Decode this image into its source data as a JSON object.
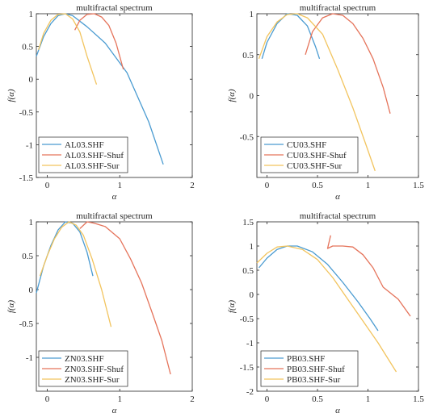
{
  "chart_data": [
    {
      "type": "line",
      "title": "multifractal spectrum",
      "xlabel": "α",
      "ylabel": "f(α)",
      "xlim": [
        -0.15,
        2
      ],
      "ylim": [
        -1.5,
        1
      ],
      "xticks": [
        0,
        1,
        2
      ],
      "yticks": [
        -1.5,
        -1,
        -0.5,
        0,
        0.5,
        1
      ],
      "grid": false,
      "legend_position": "bottom-left",
      "series": [
        {
          "name": "AL03.SHF",
          "color": "#4A9BD1",
          "x": [
            -0.15,
            -0.05,
            0.05,
            0.15,
            0.25,
            0.35,
            0.55,
            0.8,
            1.1,
            1.4,
            1.6
          ],
          "y": [
            0.35,
            0.65,
            0.85,
            0.97,
            1.0,
            0.97,
            0.8,
            0.55,
            0.1,
            -0.65,
            -1.3
          ]
        },
        {
          "name": "AL03.SHF-Shuf",
          "color": "#E5735A",
          "x": [
            0.38,
            0.45,
            0.55,
            0.65,
            0.75,
            0.85,
            0.95,
            1.05
          ],
          "y": [
            0.75,
            0.9,
            0.99,
            1.0,
            0.95,
            0.82,
            0.55,
            0.15
          ]
        },
        {
          "name": "AL03.SHF-Sur",
          "color": "#F2C45E",
          "x": [
            -0.12,
            -0.05,
            0.05,
            0.15,
            0.25,
            0.35,
            0.45,
            0.55,
            0.68
          ],
          "y": [
            0.45,
            0.7,
            0.9,
            0.99,
            1.0,
            0.92,
            0.72,
            0.35,
            -0.08
          ]
        }
      ]
    },
    {
      "type": "line",
      "title": "multifractal spectrum",
      "xlabel": "α",
      "ylabel": "f(α)",
      "xlim": [
        -0.1,
        1.5
      ],
      "ylim": [
        -1,
        1
      ],
      "xticks": [
        0,
        0.5,
        1,
        1.5
      ],
      "yticks": [
        -0.5,
        0,
        0.5,
        1
      ],
      "grid": false,
      "legend_position": "bottom-left",
      "series": [
        {
          "name": "CU03.SHF",
          "color": "#4A9BD1",
          "x": [
            -0.05,
            0.0,
            0.1,
            0.2,
            0.3,
            0.4,
            0.48,
            0.52
          ],
          "y": [
            0.45,
            0.65,
            0.88,
            1.0,
            0.98,
            0.85,
            0.6,
            0.45
          ]
        },
        {
          "name": "CU03.SHF-Shuf",
          "color": "#E5735A",
          "x": [
            0.38,
            0.45,
            0.55,
            0.65,
            0.75,
            0.85,
            0.95,
            1.05,
            1.15,
            1.22
          ],
          "y": [
            0.5,
            0.78,
            0.95,
            1.0,
            0.98,
            0.88,
            0.7,
            0.45,
            0.1,
            -0.22
          ]
        },
        {
          "name": "CU03.SHF-Sur",
          "color": "#F2C45E",
          "x": [
            -0.08,
            0.0,
            0.1,
            0.2,
            0.3,
            0.4,
            0.55,
            0.7,
            0.85,
            0.98,
            1.07
          ],
          "y": [
            0.45,
            0.72,
            0.9,
            0.99,
            1.0,
            0.95,
            0.75,
            0.32,
            -0.15,
            -0.6,
            -0.92
          ]
        }
      ]
    },
    {
      "type": "line",
      "title": "multifractal spectrum",
      "xlabel": "α",
      "ylabel": "f(α)",
      "xlim": [
        -0.15,
        2
      ],
      "ylim": [
        -1.5,
        1
      ],
      "xticks": [
        0,
        1,
        2
      ],
      "yticks": [
        -1,
        -0.5,
        0,
        0.5,
        1
      ],
      "grid": false,
      "legend_position": "bottom-left",
      "series": [
        {
          "name": "ZN03.SHF",
          "color": "#4A9BD1",
          "x": [
            -0.15,
            -0.05,
            0.05,
            0.15,
            0.25,
            0.35,
            0.45,
            0.55,
            0.63
          ],
          "y": [
            -0.05,
            0.35,
            0.65,
            0.88,
            1.0,
            0.98,
            0.85,
            0.55,
            0.2
          ]
        },
        {
          "name": "ZN03.SHF-Shuf",
          "color": "#E5735A",
          "x": [
            0.45,
            0.55,
            0.65,
            0.8,
            1.0,
            1.15,
            1.3,
            1.45,
            1.58,
            1.7
          ],
          "y": [
            0.9,
            1.0,
            0.98,
            0.93,
            0.75,
            0.45,
            0.1,
            -0.35,
            -0.75,
            -1.25
          ]
        },
        {
          "name": "ZN03.SHF-Sur",
          "color": "#F2C45E",
          "x": [
            -0.1,
            0.0,
            0.1,
            0.2,
            0.3,
            0.4,
            0.5,
            0.62,
            0.75,
            0.88
          ],
          "y": [
            0.2,
            0.5,
            0.75,
            0.92,
            1.0,
            0.95,
            0.8,
            0.45,
            0.0,
            -0.55
          ]
        }
      ]
    },
    {
      "type": "line",
      "title": "multifractal spectrum",
      "xlabel": "α",
      "ylabel": "f(α)",
      "xlim": [
        -0.1,
        1.5
      ],
      "ylim": [
        -2,
        1.5
      ],
      "xticks": [
        0,
        0.5,
        1,
        1.5
      ],
      "yticks": [
        -2,
        -1.5,
        -1,
        -0.5,
        0,
        0.5,
        1,
        1.5
      ],
      "grid": false,
      "legend_position": "bottom-left",
      "series": [
        {
          "name": "PB03.SHF",
          "color": "#4A9BD1",
          "x": [
            -0.08,
            0.0,
            0.1,
            0.2,
            0.3,
            0.45,
            0.6,
            0.75,
            0.9,
            1.02,
            1.1
          ],
          "y": [
            0.55,
            0.75,
            0.93,
            1.0,
            1.0,
            0.88,
            0.62,
            0.25,
            -0.15,
            -0.5,
            -0.75
          ]
        },
        {
          "name": "PB03.SHF-Shuf",
          "color": "#E5735A",
          "x": [
            0.63,
            0.6,
            0.65,
            0.75,
            0.85,
            0.95,
            1.05,
            1.15,
            1.3,
            1.42
          ],
          "y": [
            1.22,
            0.95,
            1.0,
            1.0,
            0.98,
            0.82,
            0.55,
            0.15,
            -0.1,
            -0.45
          ]
        },
        {
          "name": "PB03.SHF-Sur",
          "color": "#F2C45E",
          "x": [
            -0.1,
            0.0,
            0.1,
            0.2,
            0.35,
            0.5,
            0.65,
            0.8,
            0.95,
            1.1,
            1.28
          ],
          "y": [
            0.65,
            0.85,
            0.98,
            1.0,
            0.93,
            0.72,
            0.35,
            -0.1,
            -0.55,
            -1.0,
            -1.6
          ]
        }
      ]
    }
  ]
}
